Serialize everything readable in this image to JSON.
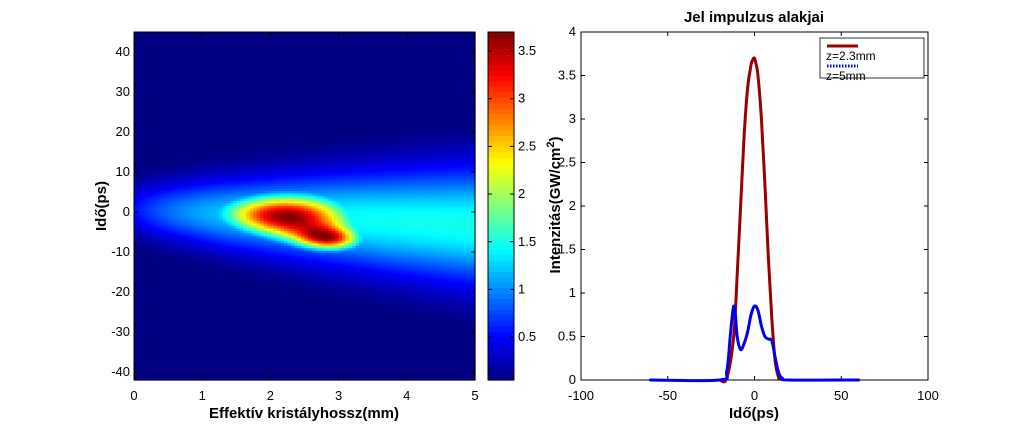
{
  "chart_data": [
    {
      "type": "heatmap",
      "title": "",
      "xlabel": "Effektív kristályhossz(mm)",
      "ylabel": "Idő(ps)",
      "xlim": [
        0,
        5
      ],
      "ylim": [
        -42,
        45
      ],
      "xticks": [
        "0",
        "1",
        "2",
        "3",
        "4",
        "5"
      ],
      "yticks": [
        "-40",
        "-30",
        "-20",
        "-10",
        "0",
        "10",
        "20",
        "30",
        "40"
      ],
      "colorbar": {
        "range": [
          0.05,
          3.7
        ],
        "ticks": [
          "0.5",
          "1",
          "1.5",
          "2",
          "2.5",
          "3",
          "3.5"
        ],
        "colormap": "jet"
      },
      "peak": {
        "x": 2.25,
        "y": -1,
        "value": 3.7
      },
      "grid": false
    },
    {
      "type": "line",
      "title": "Jel impulzus alakjai",
      "xlabel": "Idő(ps)",
      "ylabel": "Intenzitás(GW/cm",
      "ylabel_sup": "2",
      "ylabel_end": ")",
      "xlim": [
        -100,
        100
      ],
      "ylim": [
        0,
        4
      ],
      "xticks": [
        "-100",
        "-50",
        "0",
        "50",
        "100"
      ],
      "yticks": [
        "0",
        "0.5",
        "1",
        "1.5",
        "2",
        "2.5",
        "3",
        "3.5",
        "4"
      ],
      "legend_placement": "top-right",
      "grid": false,
      "series": [
        {
          "name": "z=2.3mm",
          "color": "#990000",
          "style": "solid",
          "x": [
            -20,
            -16,
            -12,
            -10,
            -8,
            -6,
            -4,
            -2,
            -1,
            0,
            1,
            2,
            4,
            6,
            8,
            10,
            12,
            14
          ],
          "y": [
            0,
            0.02,
            0.5,
            1.2,
            2.0,
            2.8,
            3.35,
            3.62,
            3.68,
            3.7,
            3.62,
            3.5,
            3.0,
            2.25,
            1.4,
            0.7,
            0.2,
            0.02
          ]
        },
        {
          "name": "z=5mm",
          "color": "#0000ee",
          "style": "dotted",
          "x": [
            -60,
            -20,
            -16,
            -14,
            -13,
            -12,
            -11,
            -10,
            -8,
            -6,
            -4,
            -2,
            0,
            2,
            4,
            6,
            8,
            10,
            12,
            14,
            16,
            20,
            60
          ],
          "y": [
            0,
            0,
            0.1,
            0.5,
            0.7,
            0.85,
            0.75,
            0.5,
            0.35,
            0.42,
            0.55,
            0.75,
            0.85,
            0.8,
            0.62,
            0.5,
            0.47,
            0.45,
            0.25,
            0.08,
            0.02,
            0,
            0
          ]
        }
      ]
    }
  ]
}
